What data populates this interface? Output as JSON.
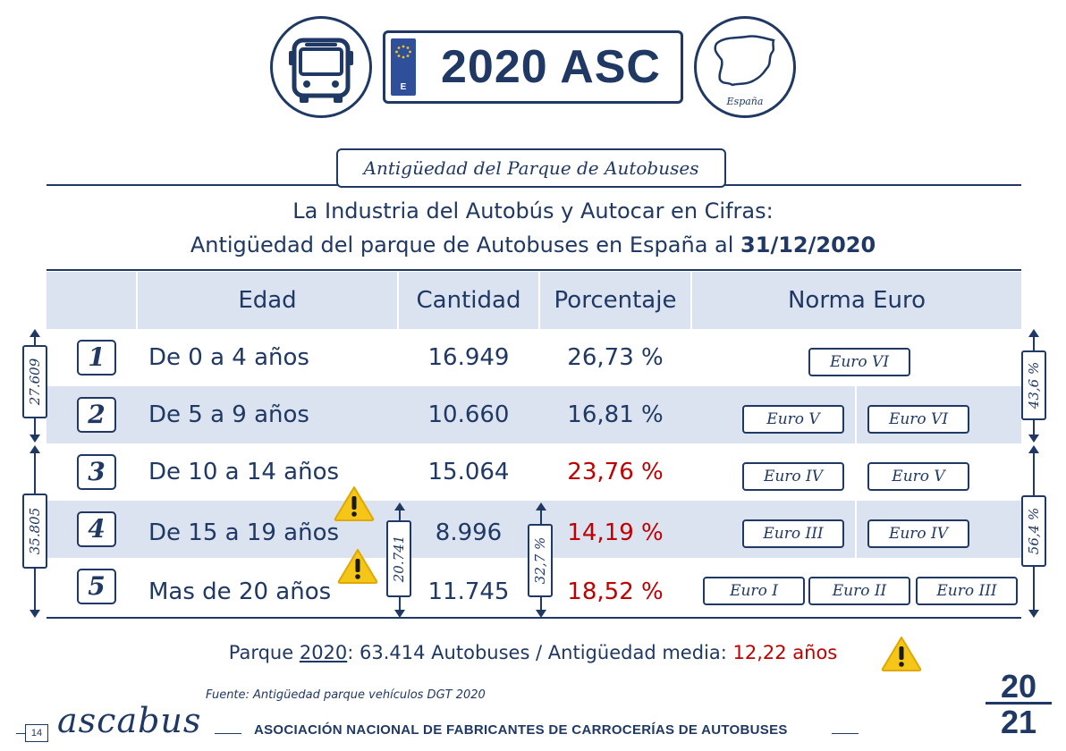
{
  "header": {
    "plate_text": "2020 ASC",
    "plate_country": "E",
    "map_label": "España",
    "bus_icon": "bus-icon",
    "map_icon": "spain-map-icon"
  },
  "section": {
    "label": "Antigüedad del Parque de Autobuses"
  },
  "title": {
    "line1": "La Industria del Autobús y Autocar en Cifras:",
    "line2_prefix": "Antigüedad del parque de Autobuses en España al ",
    "line2_date": "31/12/2020"
  },
  "table": {
    "headers": {
      "edad": "Edad",
      "cantidad": "Cantidad",
      "porcentaje": "Porcentaje",
      "norma": "Norma Euro"
    },
    "rows": [
      {
        "num": "1",
        "edad": "De 0 a 4 años",
        "cantidad": "16.949",
        "porcentaje": "26,73 %",
        "euro": [
          "Euro VI"
        ]
      },
      {
        "num": "2",
        "edad": "De 5 a 9 años",
        "cantidad": "10.660",
        "porcentaje": "16,81 %",
        "euro": [
          "Euro V",
          "Euro VI"
        ]
      },
      {
        "num": "3",
        "edad": "De 10 a 14 años",
        "cantidad": "15.064",
        "porcentaje": "23,76 %",
        "euro": [
          "Euro IV",
          "Euro V"
        ]
      },
      {
        "num": "4",
        "edad": "De 15 a 19 años",
        "cantidad": "8.996",
        "porcentaje": "14,19 %",
        "euro": [
          "Euro III",
          "Euro IV"
        ]
      },
      {
        "num": "5",
        "edad": "Mas de 20 años",
        "cantidad": "11.745",
        "porcentaje": "18,52 %",
        "euro": [
          "Euro I",
          "Euro II",
          "Euro III"
        ]
      }
    ]
  },
  "brackets": {
    "left_top": "27.609",
    "left_bottom": "35.805",
    "right_top": "43,6 %",
    "right_bottom": "56,4 %",
    "inner_cantidad": "20.741",
    "inner_porcentaje": "32,7 %"
  },
  "footer": {
    "summary_prefix": "Parque ",
    "summary_year": "2020",
    "summary_middle": ": 63.414 Autobuses  / Antigüedad  media: ",
    "summary_avg": "12,22 años",
    "source": "Fuente: Antigüedad  parque vehículos  DGT 2020",
    "page_number": "14",
    "logo": "ascabus",
    "organization": "ASOCIACIÓN NACIONAL DE FABRICANTES DE CARROCERÍAS DE AUTOBUSES",
    "year_logo_top": "20",
    "year_logo_bottom": "21"
  },
  "colors": {
    "navy": "#1f3864",
    "shade": "#dbe3f0",
    "red": "#c00000",
    "warning": "#f5c518"
  }
}
